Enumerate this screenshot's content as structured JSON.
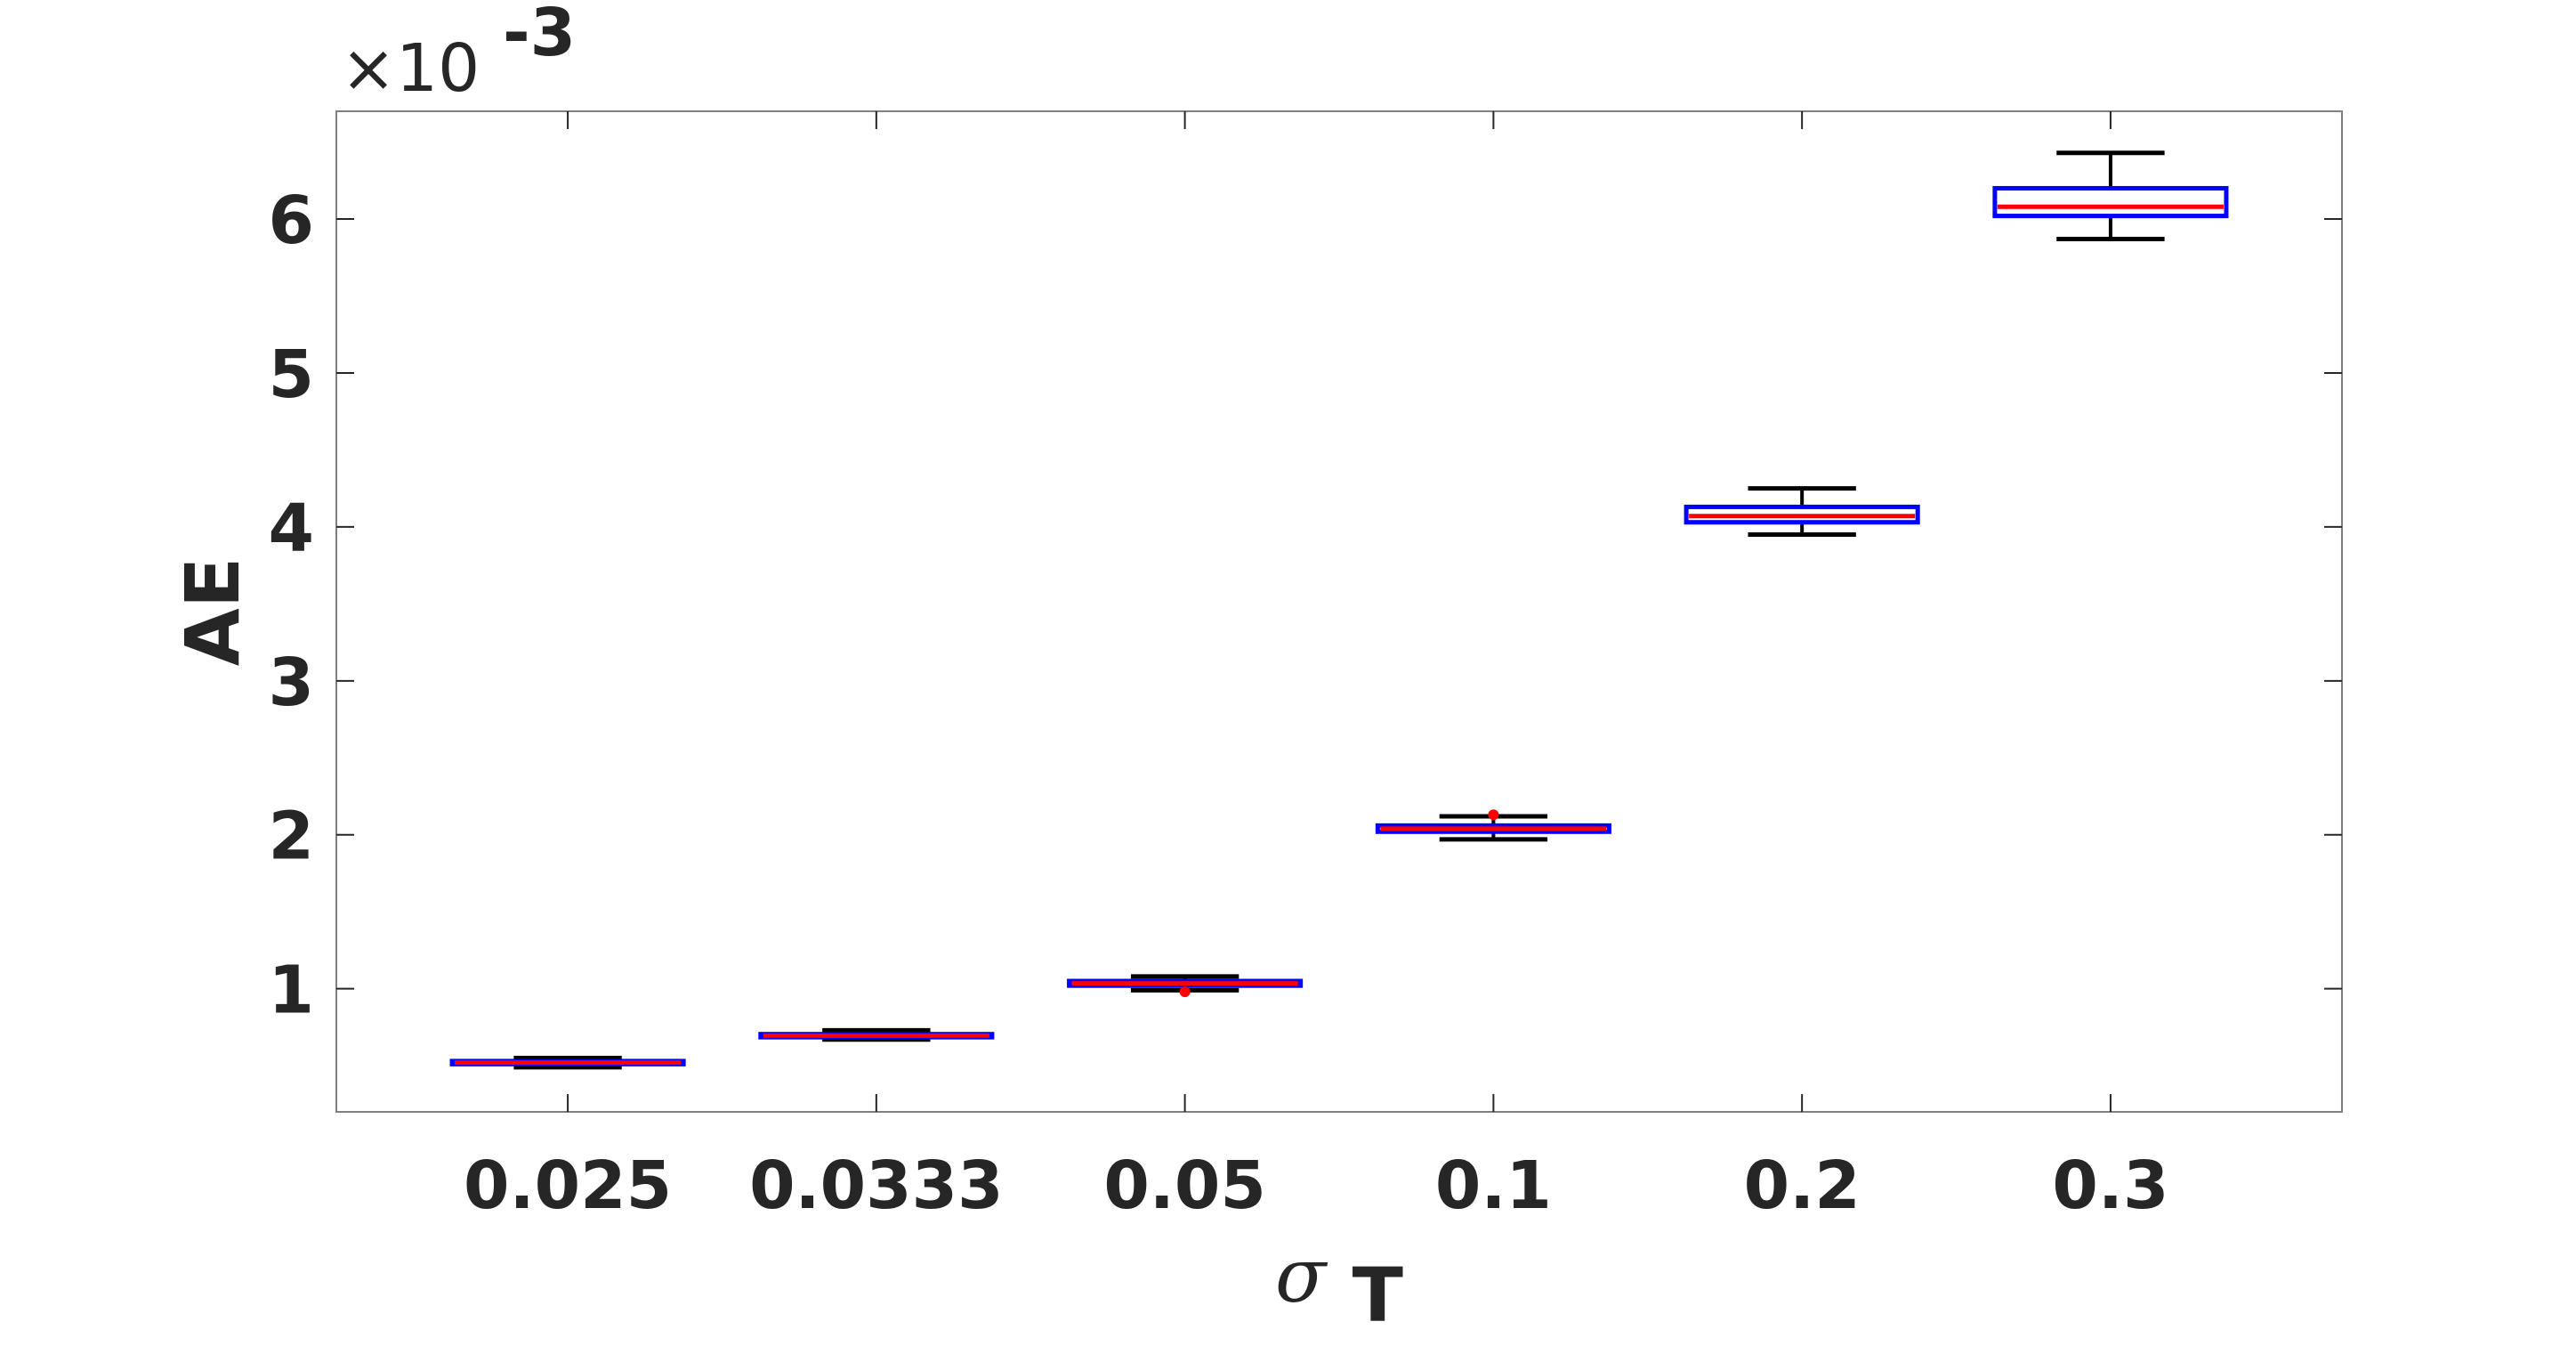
{
  "chart_data": {
    "type": "box",
    "categories": [
      "0.025",
      "0.0333",
      "0.05",
      "0.1",
      "0.2",
      "0.3"
    ],
    "xlabel": {
      "symbol": "σ",
      "subscript": "T"
    },
    "ylabel": "AE",
    "y_multiplier": {
      "prefix": "×10",
      "exponent": "-3"
    },
    "ylim": [
      0.2,
      6.7
    ],
    "yticks": [
      1,
      2,
      3,
      4,
      5,
      6
    ],
    "grid": false,
    "series": [
      {
        "boxes": [
          {
            "category": "0.025",
            "whisker_low": 0.49,
            "q1": 0.51,
            "median": 0.52,
            "q3": 0.53,
            "whisker_high": 0.55,
            "outliers": []
          },
          {
            "category": "0.0333",
            "whisker_low": 0.67,
            "q1": 0.685,
            "median": 0.695,
            "q3": 0.705,
            "whisker_high": 0.73,
            "outliers": []
          },
          {
            "category": "0.05",
            "whisker_low": 0.99,
            "q1": 1.02,
            "median": 1.035,
            "q3": 1.05,
            "whisker_high": 1.08,
            "outliers": [
              0.98
            ]
          },
          {
            "category": "0.1",
            "whisker_low": 1.97,
            "q1": 2.02,
            "median": 2.04,
            "q3": 2.06,
            "whisker_high": 2.12,
            "outliers": [
              2.13
            ]
          },
          {
            "category": "0.2",
            "whisker_low": 3.95,
            "q1": 4.03,
            "median": 4.07,
            "q3": 4.13,
            "whisker_high": 4.25,
            "outliers": []
          },
          {
            "category": "0.3",
            "whisker_low": 5.87,
            "q1": 6.02,
            "median": 6.08,
            "q3": 6.2,
            "whisker_high": 6.43,
            "outliers": []
          }
        ]
      }
    ],
    "colors": {
      "box": "#0000ff",
      "median": "#ff0000",
      "whisker": "#000000",
      "outlier": "#ff0000",
      "axes": "#262626",
      "frame": "#808080"
    }
  }
}
